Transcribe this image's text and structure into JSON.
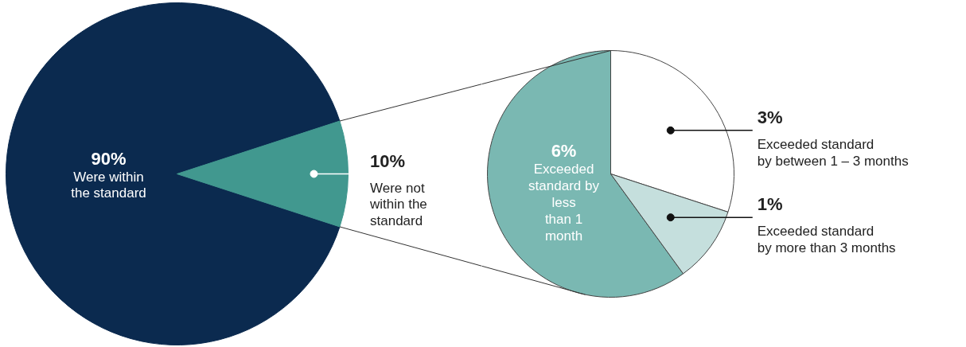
{
  "chart_data": [
    {
      "type": "pie",
      "categories": [
        "Were within\nthe standard",
        "Were not\nwithin the\nstandard"
      ],
      "values": [
        90,
        10
      ],
      "value_labels": [
        "90%",
        "10%"
      ],
      "colors": [
        "#0b2a4f",
        "#41988f"
      ]
    },
    {
      "type": "pie",
      "categories": [
        "Exceeded\nstandard by\nless\nthan 1\nmonth",
        "Exceeded standard\nby between 1 – 3 months",
        "Exceeded standard\nby more than 3 months"
      ],
      "values": [
        6,
        3,
        1
      ],
      "value_labels": [
        "6%",
        "3%",
        "1%"
      ],
      "colors": [
        "#7ab8b2",
        "#ffffff",
        "#c5dfdd"
      ]
    }
  ]
}
